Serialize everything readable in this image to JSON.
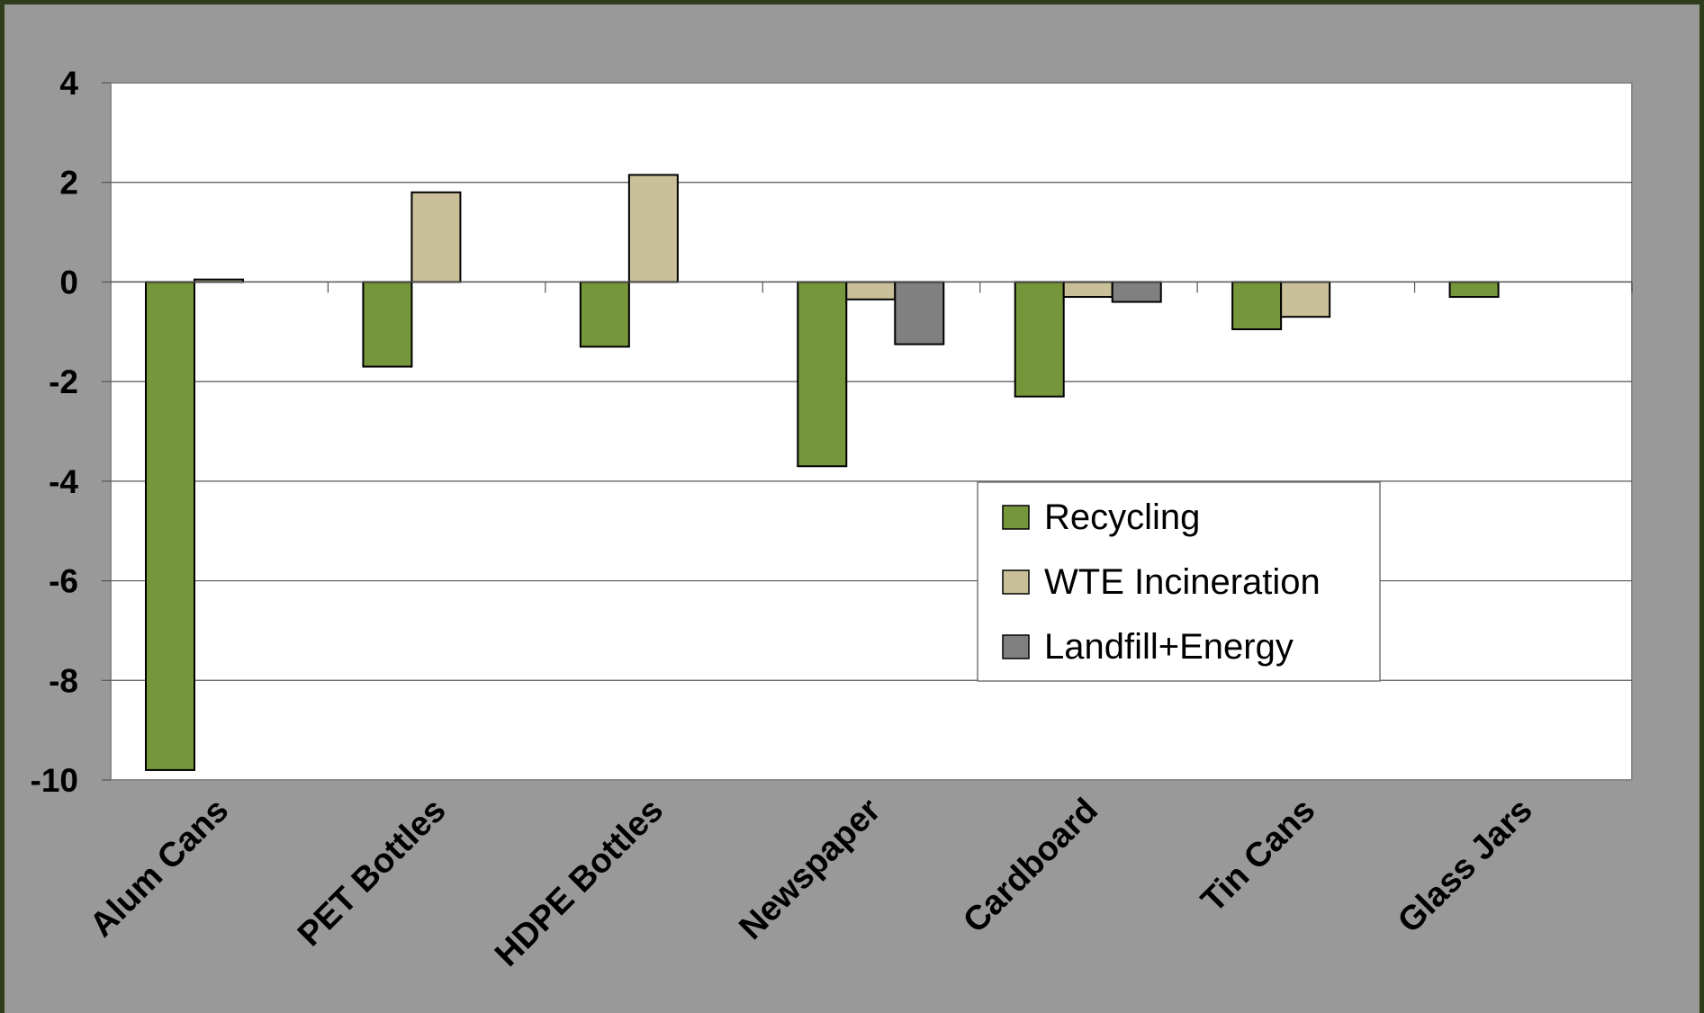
{
  "chart_data": {
    "type": "bar",
    "categories": [
      "Alum Cans",
      "PET Bottles",
      "HDPE Bottles",
      "Newspaper",
      "Cardboard",
      "Tin Cans",
      "Glass Jars"
    ],
    "series": [
      {
        "name": "Recycling",
        "values": [
          -9.8,
          -1.7,
          -1.3,
          -3.7,
          -2.3,
          -0.95,
          -0.3
        ]
      },
      {
        "name": "WTE Incineration",
        "values": [
          0.05,
          1.8,
          2.15,
          -0.35,
          -0.3,
          -0.7,
          null
        ]
      },
      {
        "name": "Landfill+Energy",
        "values": [
          null,
          null,
          null,
          -1.25,
          -0.4,
          null,
          null
        ]
      }
    ],
    "ylim": [
      -10,
      4
    ],
    "yticks": [
      4,
      2,
      0,
      -2,
      -4,
      -6,
      -8,
      -10
    ],
    "ytick_labels": [
      "4",
      "2",
      "0",
      "-2",
      "-4",
      "-6",
      "-8",
      "-10"
    ],
    "grid": true,
    "legend_position": "inside-lower-right",
    "colors": {
      "Recycling": "#76963c",
      "WTE Incineration": "#c9c09a",
      "Landfill+Energy": "#808080",
      "plot_background": "#ffffff",
      "outer_background": "#999999"
    }
  }
}
